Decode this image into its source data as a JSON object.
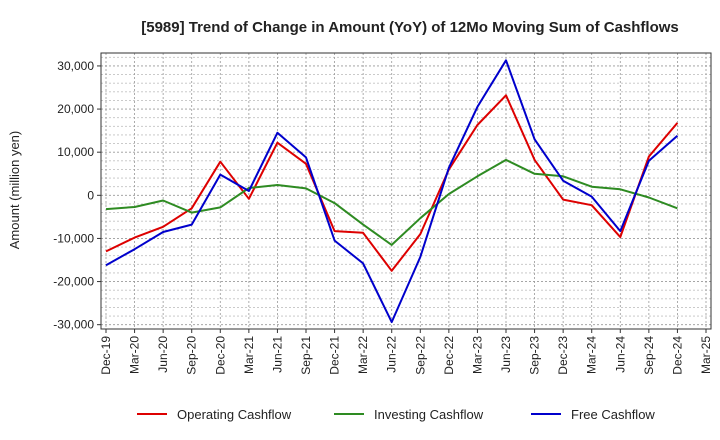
{
  "chart_data": {
    "type": "line",
    "title": "[5989]  Trend of Change in Amount (YoY) of 12Mo Moving Sum of Cashflows",
    "xlabel": "",
    "ylabel": "Amount (million yen)",
    "ylim": [
      -31000,
      33000
    ],
    "yticks": [
      30000,
      20000,
      10000,
      0,
      -10000,
      -20000,
      -30000
    ],
    "ytick_labels": [
      "30,000",
      "20,000",
      "10,000",
      "0",
      "-10,000",
      "-20,000",
      "-30,000"
    ],
    "grid": true,
    "legend_position": "bottom",
    "categories": [
      "Dec-19",
      "Mar-20",
      "Jun-20",
      "Sep-20",
      "Dec-20",
      "Mar-21",
      "Jun-21",
      "Sep-21",
      "Dec-21",
      "Mar-22",
      "Jun-22",
      "Sep-22",
      "Dec-22",
      "Mar-23",
      "Jun-23",
      "Sep-23",
      "Dec-23",
      "Mar-24",
      "Jun-24",
      "Sep-24",
      "Dec-24",
      "Mar-25"
    ],
    "series": [
      {
        "name": "Operating Cashflow",
        "color": "#dd0000",
        "values": [
          -13000,
          -9800,
          -7300,
          -3000,
          7800,
          -800,
          12200,
          7300,
          -8300,
          -8700,
          -17500,
          -9000,
          6000,
          16300,
          23200,
          8200,
          -1000,
          -2300,
          -9700,
          9000,
          16800,
          null
        ]
      },
      {
        "name": "Investing Cashflow",
        "color": "#2e8b22",
        "values": [
          -3200,
          -2700,
          -1200,
          -4000,
          -2800,
          1700,
          2400,
          1600,
          -1800,
          -6800,
          -11500,
          -5300,
          300,
          4400,
          8200,
          5000,
          4400,
          2000,
          1400,
          -500,
          -3000,
          null
        ]
      },
      {
        "name": "Free Cashflow",
        "color": "#0000cc",
        "values": [
          -16200,
          -12500,
          -8500,
          -6800,
          4800,
          1000,
          14500,
          8800,
          -10500,
          -15800,
          -29400,
          -14300,
          6400,
          20500,
          31300,
          13000,
          3400,
          -300,
          -8300,
          8000,
          13800,
          null
        ]
      }
    ]
  }
}
